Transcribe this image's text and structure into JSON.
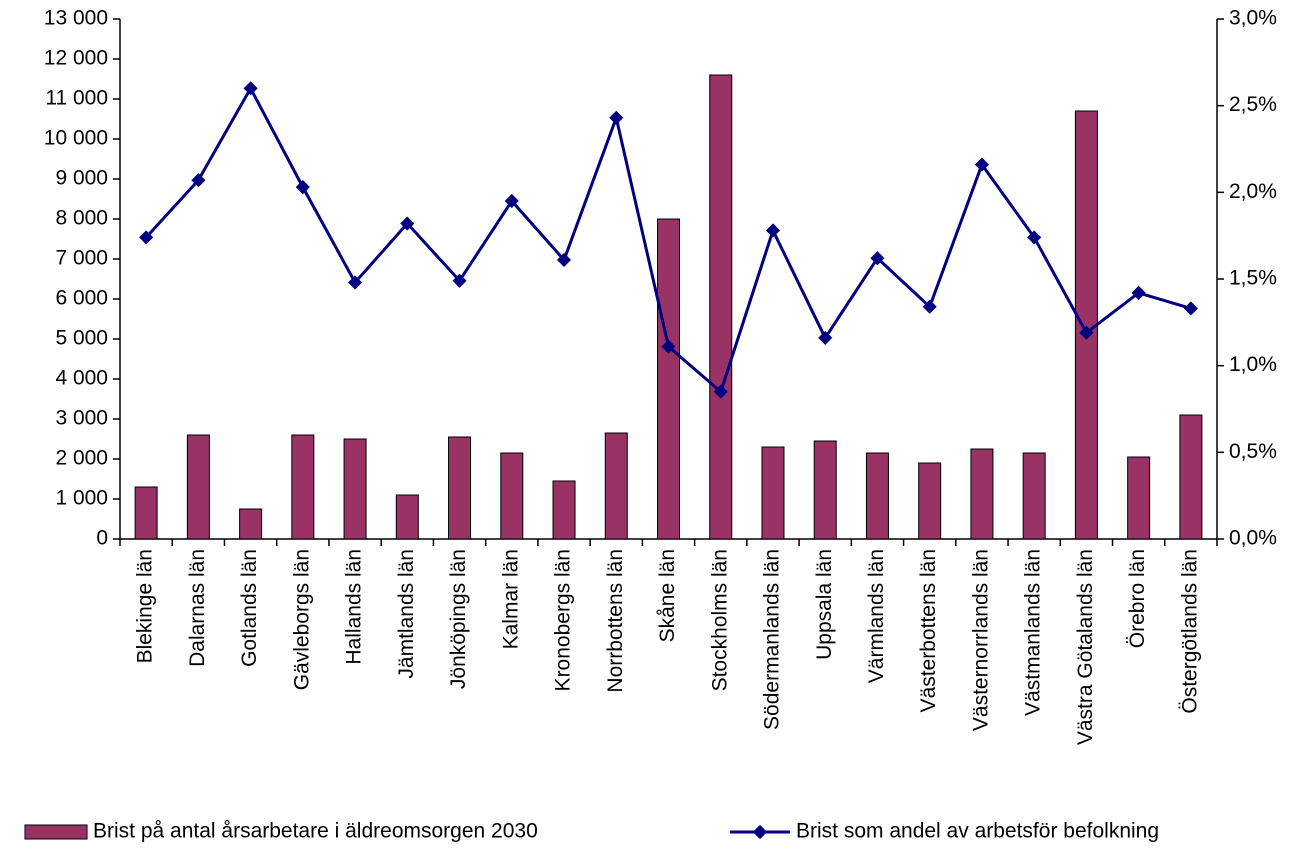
{
  "chart_data": {
    "type": "bar",
    "categories": [
      "Blekinge län",
      "Dalarnas län",
      "Gotlands län",
      "Gävleborgs län",
      "Hallands län",
      "Jämtlands län",
      "Jönköpings län",
      "Kalmar län",
      "Kronobergs län",
      "Norrbottens län",
      "Skåne län",
      "Stockholms län",
      "Södermanlands län",
      "Uppsala län",
      "Värmlands län",
      "Västerbottens län",
      "Västernorrlands län",
      "Västmanlands län",
      "Västra Götalands län",
      "Örebro län",
      "Östergötlands län"
    ],
    "series": [
      {
        "name": "Brist på antal årsarbetare i äldreomsorgen 2030",
        "type": "bar",
        "color": "#993366",
        "values": [
          1300,
          2600,
          750,
          2600,
          2500,
          1100,
          2550,
          2150,
          1450,
          2650,
          8000,
          11600,
          2300,
          2450,
          2150,
          1900,
          2250,
          2150,
          10700,
          2050,
          3100
        ]
      },
      {
        "name": "Brist som andel av arbetsför befolkning",
        "type": "line",
        "axis": "y2",
        "color": "#000080",
        "values": [
          1.74,
          2.07,
          2.6,
          2.03,
          1.48,
          1.82,
          1.49,
          1.95,
          1.61,
          2.43,
          1.11,
          0.85,
          1.78,
          1.16,
          1.62,
          1.34,
          2.16,
          1.74,
          1.19,
          1.42,
          1.33
        ]
      }
    ],
    "ylim": [
      0,
      13000
    ],
    "yticks": [
      0,
      {
        "value": 1000,
        "label": "1 000"
      },
      {
        "value": 2000,
        "label": "2 000"
      },
      {
        "value": 3000,
        "label": "3 000"
      },
      {
        "value": 4000,
        "label": "4 000"
      },
      {
        "value": 5000,
        "label": "5 000"
      },
      {
        "value": 6000,
        "label": "6 000"
      },
      {
        "value": 7000,
        "label": "7 000"
      },
      {
        "value": 8000,
        "label": "8 000"
      },
      {
        "value": 9000,
        "label": "9 000"
      },
      {
        "value": 10000,
        "label": "10 000"
      },
      {
        "value": 11000,
        "label": "11 000"
      },
      {
        "value": 12000,
        "label": "12 000"
      },
      {
        "value": 13000,
        "label": "13 000"
      }
    ],
    "y2lim": [
      0,
      3
    ],
    "y2ticks": [
      {
        "value": 0,
        "label": "0,0%"
      },
      {
        "value": 0.5,
        "label": "0,5%"
      },
      {
        "value": 1,
        "label": "1,0%"
      },
      {
        "value": 1.5,
        "label": "1,5%"
      },
      {
        "value": 2,
        "label": "2,0%"
      },
      {
        "value": 2.5,
        "label": "2,5%"
      },
      {
        "value": 3,
        "label": "3,0%"
      }
    ],
    "legend": "bottom"
  }
}
